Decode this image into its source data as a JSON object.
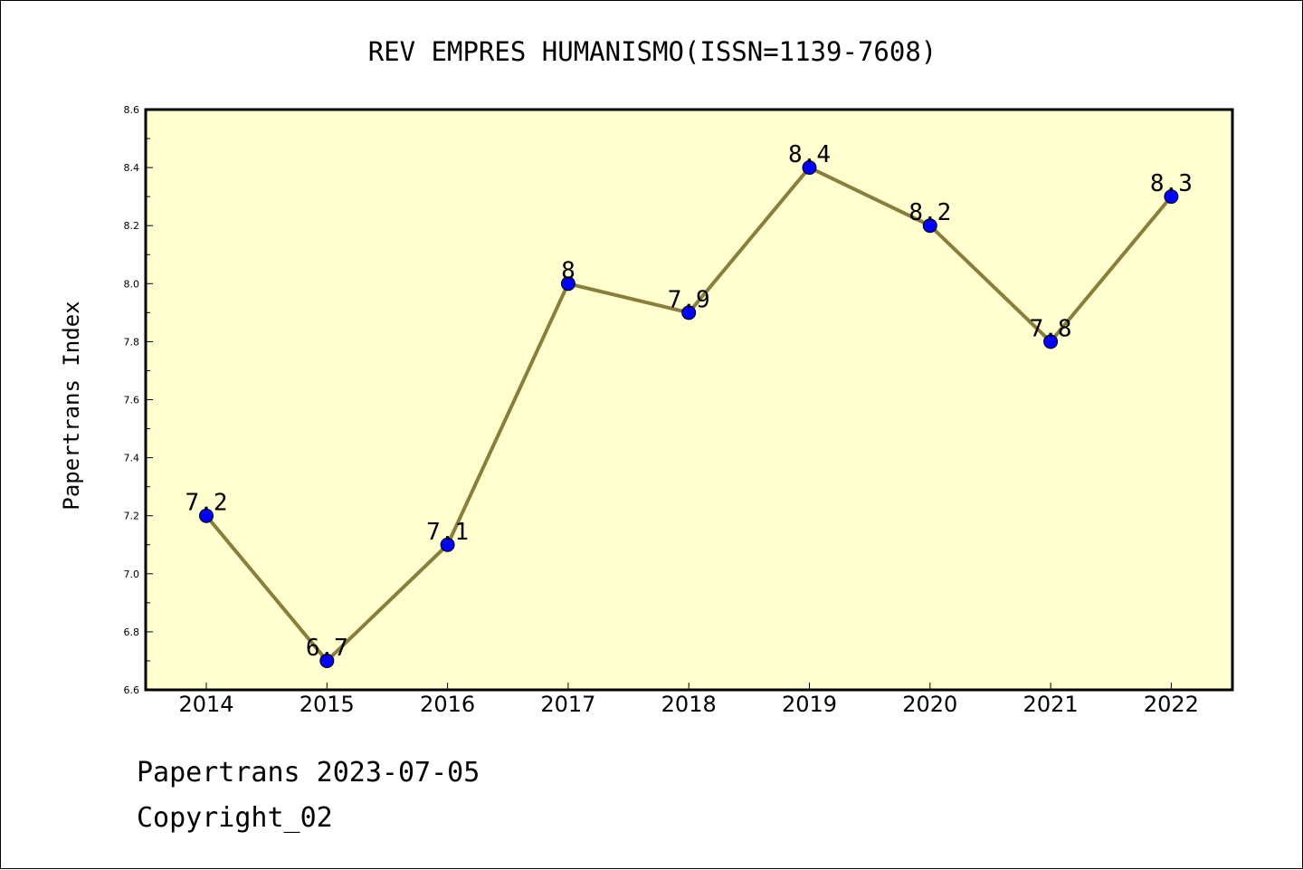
{
  "chart_data": {
    "type": "line",
    "title": "REV EMPRES HUMANISMO(ISSN=1139-7608)",
    "xlabel": "",
    "ylabel": "Papertrans Index",
    "categories": [
      "2014",
      "2015",
      "2016",
      "2017",
      "2018",
      "2019",
      "2020",
      "2021",
      "2022"
    ],
    "values": [
      7.2,
      6.7,
      7.1,
      8,
      7.9,
      8.4,
      8.2,
      7.8,
      8.3
    ],
    "data_labels": [
      "7.2",
      "6.7",
      "7.1",
      "8",
      "7.9",
      "8.4",
      "8.2",
      "7.8",
      "8.3"
    ],
    "ylim": [
      6.6,
      8.6
    ],
    "yticks": [
      "6.6",
      "6.8",
      "7.0",
      "7.2",
      "7.4",
      "7.6",
      "7.8",
      "8.0",
      "8.2",
      "8.4",
      "8.6"
    ],
    "grid": false,
    "colors": {
      "plot_background": "#FFFFD0",
      "line": "#8B7D3A",
      "marker": "#0000FF"
    }
  },
  "footer": {
    "source": "Papertrans 2023-07-05",
    "copyright": "Copyright_02"
  }
}
